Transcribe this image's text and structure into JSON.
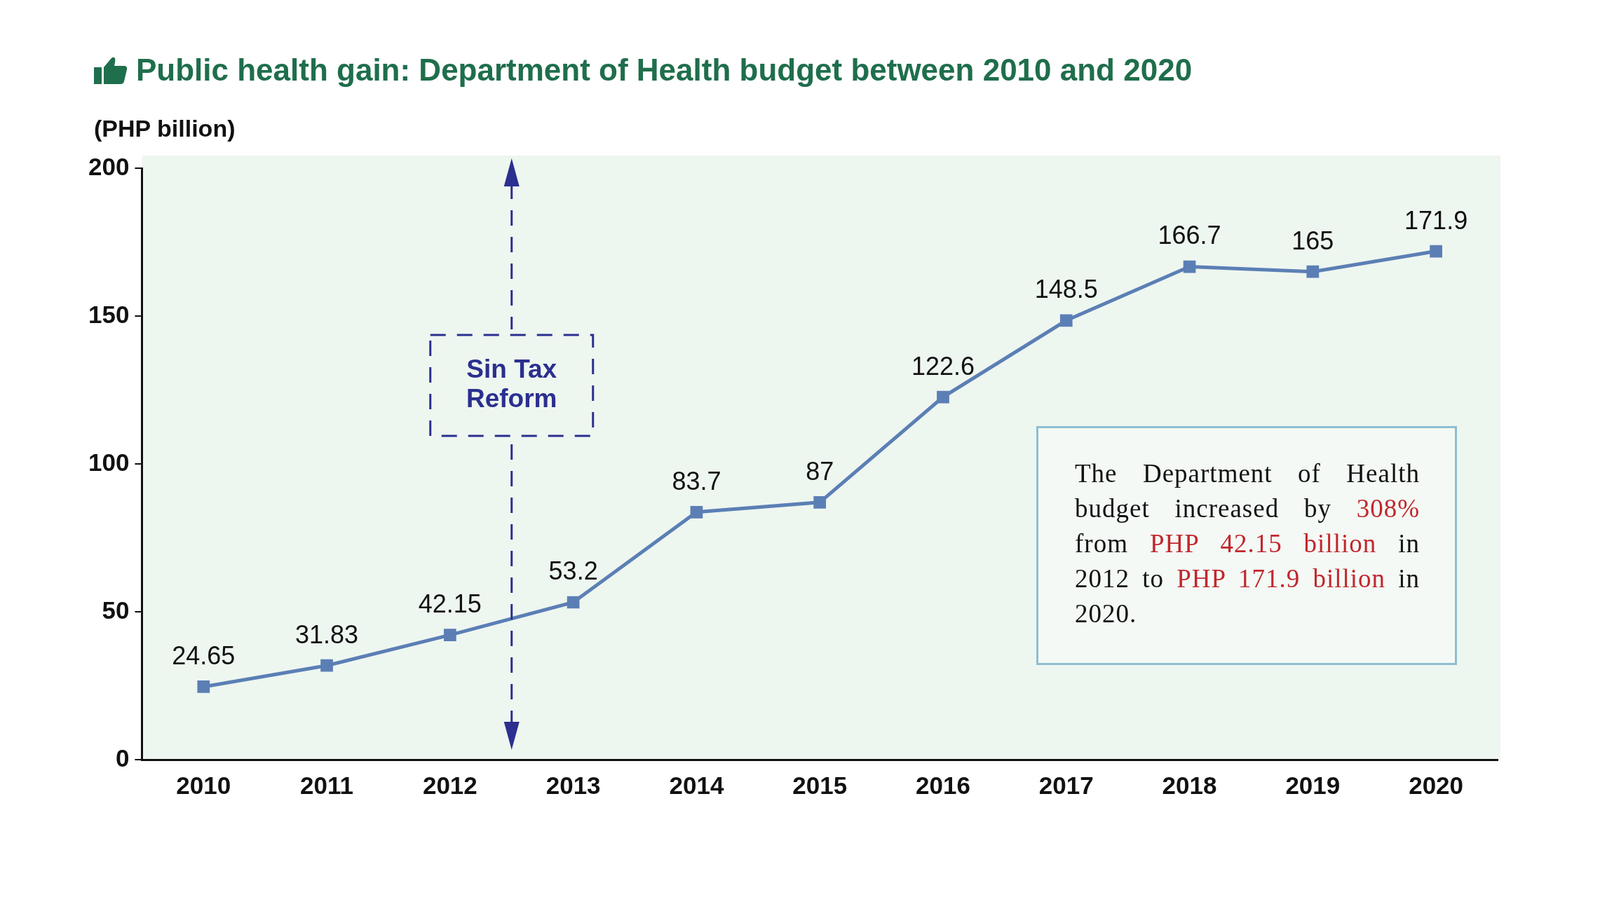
{
  "chart_data": {
    "type": "line",
    "title": "Public health gain: Department of Health budget between 2010 and 2020",
    "y_label": "(PHP billion)",
    "categories": [
      "2010",
      "2011",
      "2012",
      "2013",
      "2014",
      "2015",
      "2016",
      "2017",
      "2018",
      "2019",
      "2020"
    ],
    "values": [
      24.65,
      31.83,
      42.15,
      53.2,
      83.7,
      87,
      122.6,
      148.5,
      166.7,
      165,
      171.9
    ],
    "color": "#5b7fb5",
    "marker": "square",
    "ylim": [
      0,
      200
    ],
    "yticks": [
      0,
      50,
      100,
      150,
      200
    ],
    "grid": false,
    "data_labels": true,
    "annotations": {
      "event": {
        "lines": [
          "Sin Tax",
          "Reform"
        ],
        "between": [
          "2012",
          "2013"
        ],
        "color": "#2b2f8f"
      },
      "note": {
        "segments": [
          {
            "text": "The Department of Health budget increased by ",
            "color": "#111111"
          },
          {
            "text": "308%",
            "color": "#c1272d"
          },
          {
            "text": " from ",
            "color": "#111111"
          },
          {
            "text": "PHP 42.15 billion",
            "color": "#c1272d"
          },
          {
            "text": " in 2012 to ",
            "color": "#111111"
          },
          {
            "text": "PHP 171.9 billion",
            "color": "#c1272d"
          },
          {
            "text": " in 2020.",
            "color": "#111111"
          }
        ]
      }
    }
  }
}
